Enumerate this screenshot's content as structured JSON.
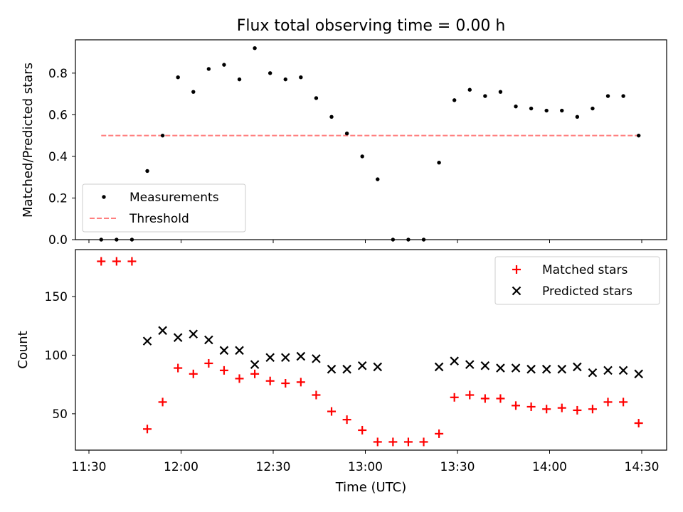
{
  "title": "Flux total observing time = 0.00 h",
  "xlabel": "Time (UTC)",
  "x_ticks": [
    "11:30",
    "12:00",
    "12:30",
    "13:00",
    "13:30",
    "14:00",
    "14:30"
  ],
  "colors": {
    "matched": "#ff0000",
    "predicted": "#000000",
    "threshold": "#ff7f7f",
    "measurements": "#000000"
  },
  "chart_data": [
    {
      "type": "scatter",
      "ylabel": "Matched/Predicted stars",
      "ylim": [
        0,
        0.96
      ],
      "yticks": [
        "0.0",
        "0.2",
        "0.4",
        "0.6",
        "0.8"
      ],
      "legend_position": "lower-left",
      "x": [
        "11:34",
        "11:39",
        "11:44",
        "11:49",
        "11:54",
        "11:59",
        "12:04",
        "12:09",
        "12:14",
        "12:19",
        "12:24",
        "12:29",
        "12:34",
        "12:39",
        "12:44",
        "12:49",
        "12:54",
        "12:59",
        "13:04",
        "13:09",
        "13:14",
        "13:19",
        "13:24",
        "13:29",
        "13:34",
        "13:39",
        "13:44",
        "13:49",
        "13:54",
        "13:59",
        "14:04",
        "14:09",
        "14:14",
        "14:19",
        "14:24",
        "14:29"
      ],
      "series": [
        {
          "name": "Measurements",
          "marker": "dot",
          "values": [
            0.0,
            0.0,
            0.0,
            0.33,
            0.5,
            0.78,
            0.71,
            0.82,
            0.84,
            0.77,
            0.92,
            0.8,
            0.77,
            0.78,
            0.68,
            0.59,
            0.51,
            0.4,
            0.29,
            0.0,
            0.0,
            0.0,
            0.37,
            0.67,
            0.72,
            0.69,
            0.71,
            0.64,
            0.63,
            0.62,
            0.62,
            0.59,
            0.63,
            0.69,
            0.69,
            0.5
          ]
        },
        {
          "name": "Threshold",
          "marker": "dashed-line",
          "x": [
            "11:34",
            "14:29"
          ],
          "values": [
            0.5,
            0.5
          ]
        }
      ]
    },
    {
      "type": "scatter",
      "ylabel": "Count",
      "ylim": [
        19,
        190
      ],
      "yticks": [
        "50",
        "100",
        "150"
      ],
      "legend_position": "upper-right",
      "x": [
        "11:34",
        "11:39",
        "11:44",
        "11:49",
        "11:54",
        "11:59",
        "12:04",
        "12:09",
        "12:14",
        "12:19",
        "12:24",
        "12:29",
        "12:34",
        "12:39",
        "12:44",
        "12:49",
        "12:54",
        "12:59",
        "13:04",
        "13:09",
        "13:14",
        "13:19",
        "13:24",
        "13:29",
        "13:34",
        "13:39",
        "13:44",
        "13:49",
        "13:54",
        "13:59",
        "14:04",
        "14:09",
        "14:14",
        "14:19",
        "14:24",
        "14:29"
      ],
      "series": [
        {
          "name": "Matched stars",
          "marker": "plus",
          "values": [
            180,
            180,
            180,
            37,
            60,
            89,
            84,
            93,
            87,
            80,
            84,
            78,
            76,
            77,
            66,
            52,
            45,
            36,
            26,
            26,
            26,
            26,
            33,
            64,
            66,
            63,
            63,
            57,
            56,
            54,
            55,
            53,
            54,
            60,
            60,
            42
          ]
        },
        {
          "name": "Predicted stars",
          "marker": "x",
          "x": [
            "11:49",
            "11:54",
            "11:59",
            "12:04",
            "12:09",
            "12:14",
            "12:19",
            "12:24",
            "12:29",
            "12:34",
            "12:39",
            "12:44",
            "12:49",
            "12:54",
            "12:59",
            "13:04",
            "13:24",
            "13:29",
            "13:34",
            "13:39",
            "13:44",
            "13:49",
            "13:54",
            "13:59",
            "14:04",
            "14:09",
            "14:14",
            "14:19",
            "14:24",
            "14:29"
          ],
          "values": [
            112,
            121,
            115,
            118,
            113,
            104,
            104,
            92,
            98,
            98,
            99,
            97,
            88,
            88,
            91,
            90,
            90,
            95,
            92,
            91,
            89,
            89,
            88,
            88,
            88,
            90,
            85,
            87,
            87,
            84
          ]
        }
      ]
    }
  ]
}
